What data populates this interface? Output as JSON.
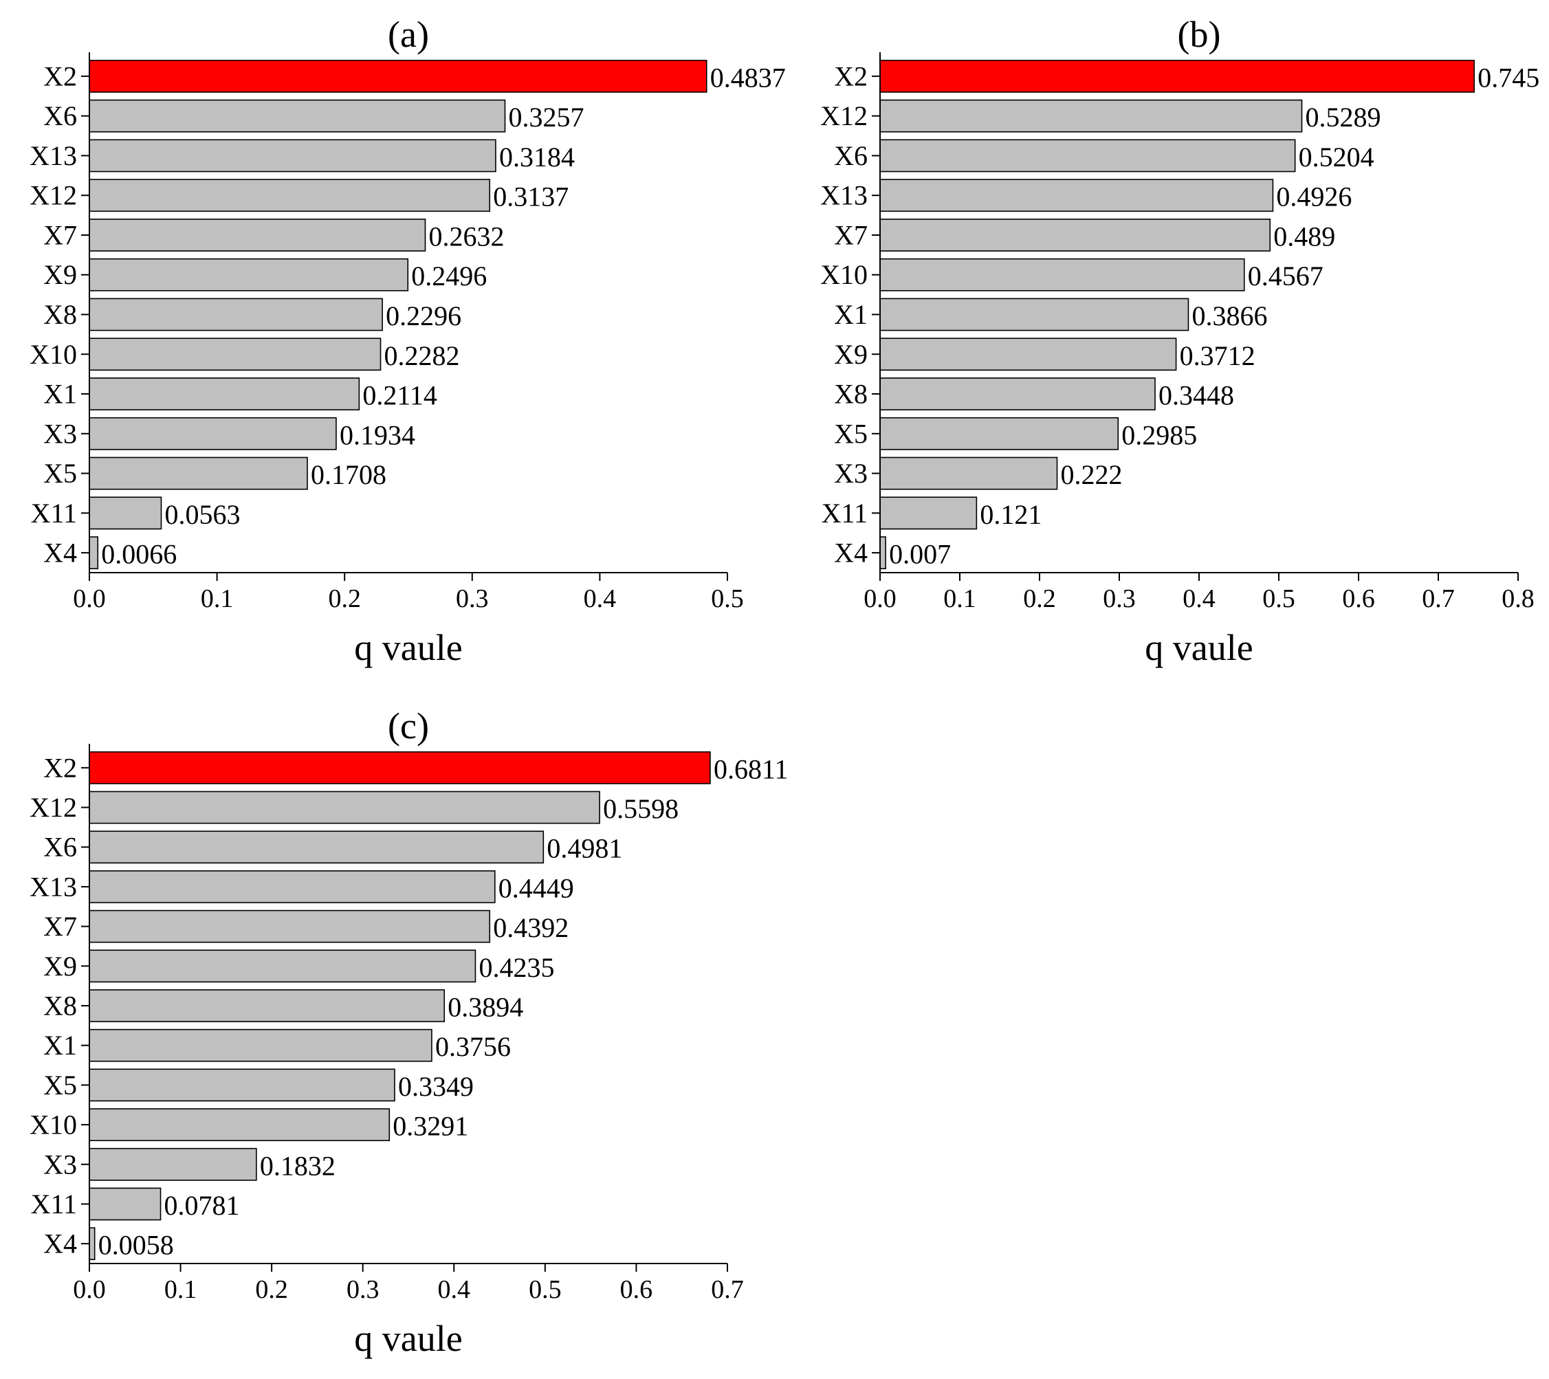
{
  "colors": {
    "highlight": "#ff0000",
    "bar": "#c0c0c0",
    "stroke": "#000000"
  },
  "chart_data": [
    {
      "type": "bar",
      "orientation": "horizontal",
      "title": "(a)",
      "xlabel": "q vaule",
      "ylabel": "",
      "xlim": [
        0,
        0.5
      ],
      "xticks": [
        "0.0",
        "0.1",
        "0.2",
        "0.3",
        "0.4",
        "0.5"
      ],
      "categories": [
        "X2",
        "X6",
        "X13",
        "X12",
        "X7",
        "X9",
        "X8",
        "X10",
        "X1",
        "X3",
        "X5",
        "X11",
        "X4"
      ],
      "values": [
        0.4837,
        0.3257,
        0.3184,
        0.3137,
        0.2632,
        0.2496,
        0.2296,
        0.2282,
        0.2114,
        0.1934,
        0.1708,
        0.0563,
        0.0066
      ],
      "labels": [
        "0.4837",
        "0.3257",
        "0.3184",
        "0.3137",
        "0.2632",
        "0.2496",
        "0.2296",
        "0.2282",
        "0.2114",
        "0.1934",
        "0.1708",
        "0.0563",
        "0.0066"
      ],
      "highlight": "X2",
      "grid": false
    },
    {
      "type": "bar",
      "orientation": "horizontal",
      "title": "(b)",
      "xlabel": "q vaule",
      "ylabel": "",
      "xlim": [
        0,
        0.8
      ],
      "xticks": [
        "0.0",
        "0.1",
        "0.2",
        "0.3",
        "0.4",
        "0.5",
        "0.6",
        "0.7",
        "0.8"
      ],
      "categories": [
        "X2",
        "X12",
        "X6",
        "X13",
        "X7",
        "X10",
        "X1",
        "X9",
        "X8",
        "X5",
        "X3",
        "X11",
        "X4"
      ],
      "values": [
        0.745,
        0.5289,
        0.5204,
        0.4926,
        0.489,
        0.4567,
        0.3866,
        0.3712,
        0.3448,
        0.2985,
        0.222,
        0.121,
        0.007
      ],
      "labels": [
        "0.745",
        "0.5289",
        "0.5204",
        "0.4926",
        "0.489",
        "0.4567",
        "0.3866",
        "0.3712",
        "0.3448",
        "0.2985",
        "0.222",
        "0.121",
        "0.007"
      ],
      "highlight": "X2",
      "grid": false
    },
    {
      "type": "bar",
      "orientation": "horizontal",
      "title": "(c)",
      "xlabel": "q vaule",
      "ylabel": "",
      "xlim": [
        0,
        0.7
      ],
      "xticks": [
        "0.0",
        "0.1",
        "0.2",
        "0.3",
        "0.4",
        "0.5",
        "0.6",
        "0.7"
      ],
      "categories": [
        "X2",
        "X12",
        "X6",
        "X13",
        "X7",
        "X9",
        "X8",
        "X1",
        "X5",
        "X10",
        "X3",
        "X11",
        "X4"
      ],
      "values": [
        0.6811,
        0.5598,
        0.4981,
        0.4449,
        0.4392,
        0.4235,
        0.3894,
        0.3756,
        0.3349,
        0.3291,
        0.1832,
        0.0781,
        0.0058
      ],
      "labels": [
        "0.6811",
        "0.5598",
        "0.4981",
        "0.4449",
        "0.4392",
        "0.4235",
        "0.3894",
        "0.3756",
        "0.3349",
        "0.3291",
        "0.1832",
        "0.0781",
        "0.0058"
      ],
      "highlight": "X2",
      "grid": false
    }
  ]
}
